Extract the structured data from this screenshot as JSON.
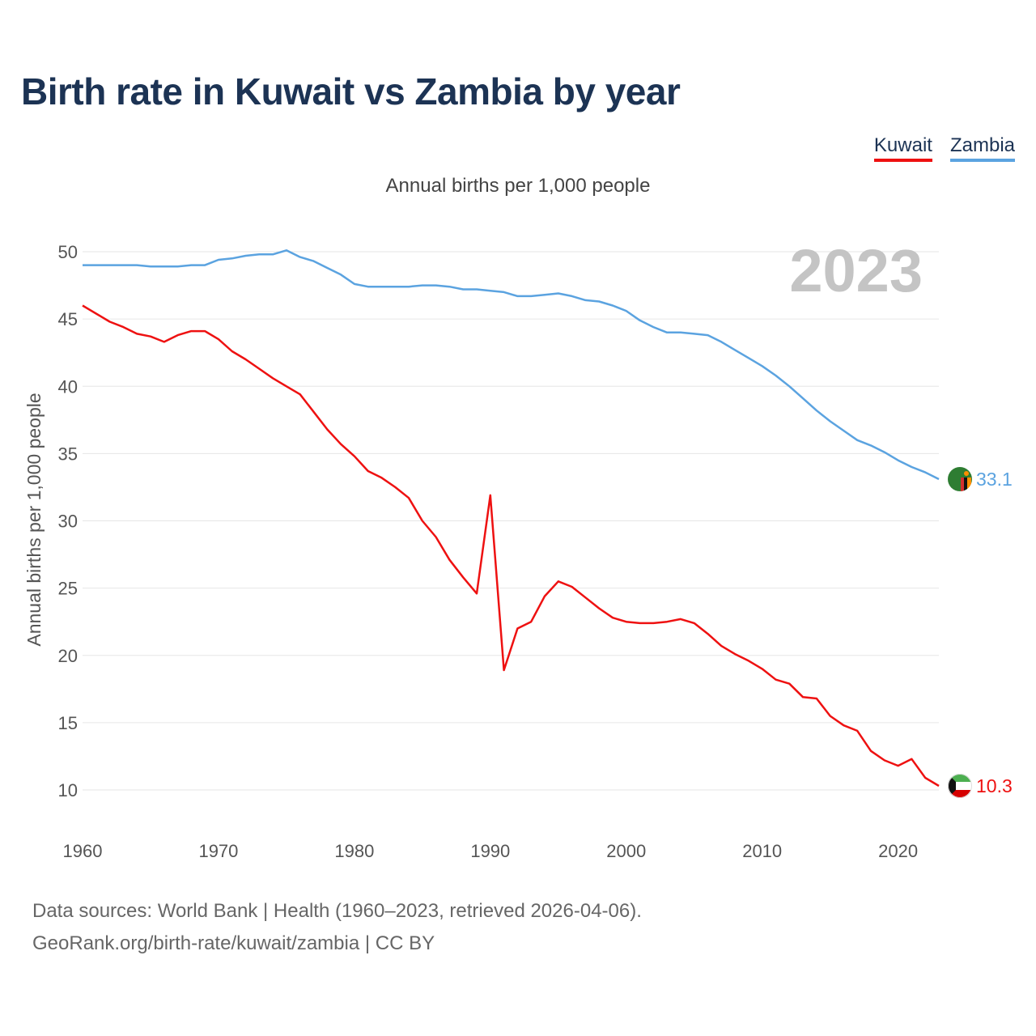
{
  "title": "Birth rate in Kuwait vs Zambia by year",
  "legend": [
    {
      "name": "Kuwait",
      "color": "#ee1111"
    },
    {
      "name": "Zambia",
      "color": "#5ba3e0"
    }
  ],
  "subtitle": "Annual births per 1,000 people",
  "footer": {
    "line1": "Data sources: World Bank | Health (1960–2023, retrieved 2026-04-06).",
    "line2": "GeoRank.org/birth-rate/kuwait/zambia | CC BY"
  },
  "chart_data": {
    "type": "line",
    "title": "Birth rate in Kuwait vs Zambia by year",
    "xlabel": "",
    "ylabel": "Annual births per 1,000 people",
    "xlim": [
      1960,
      2023
    ],
    "ylim": [
      10,
      50
    ],
    "yticks": [
      10,
      15,
      20,
      25,
      30,
      35,
      40,
      45,
      50
    ],
    "xticks": [
      1960,
      1970,
      1980,
      1990,
      2000,
      2010,
      2020
    ],
    "grid": true,
    "legend_position": "top-right",
    "year_label": "2023",
    "x": [
      1960,
      1961,
      1962,
      1963,
      1964,
      1965,
      1966,
      1967,
      1968,
      1969,
      1970,
      1971,
      1972,
      1973,
      1974,
      1975,
      1976,
      1977,
      1978,
      1979,
      1980,
      1981,
      1982,
      1983,
      1984,
      1985,
      1986,
      1987,
      1988,
      1989,
      1990,
      1991,
      1992,
      1993,
      1994,
      1995,
      1996,
      1997,
      1998,
      1999,
      2000,
      2001,
      2002,
      2003,
      2004,
      2005,
      2006,
      2007,
      2008,
      2009,
      2010,
      2011,
      2012,
      2013,
      2014,
      2015,
      2016,
      2017,
      2018,
      2019,
      2020,
      2021,
      2022,
      2023
    ],
    "series": [
      {
        "name": "Kuwait",
        "color": "#ee1111",
        "end_label": "10.3",
        "values": [
          46.0,
          45.4,
          44.8,
          44.4,
          43.9,
          43.7,
          43.3,
          43.8,
          44.1,
          44.1,
          43.5,
          42.6,
          42.0,
          41.3,
          40.6,
          40.0,
          39.4,
          38.1,
          36.8,
          35.7,
          34.8,
          33.7,
          33.2,
          32.5,
          31.7,
          30.0,
          28.8,
          27.1,
          25.8,
          24.6,
          31.9,
          18.9,
          22.0,
          22.5,
          24.4,
          25.5,
          25.1,
          24.3,
          23.5,
          22.8,
          22.5,
          22.4,
          22.4,
          22.5,
          22.7,
          22.4,
          21.6,
          20.7,
          20.1,
          19.6,
          19.0,
          18.2,
          17.9,
          16.9,
          16.8,
          15.5,
          14.8,
          14.4,
          12.9,
          12.2,
          11.8,
          12.3,
          10.9,
          10.3
        ]
      },
      {
        "name": "Zambia",
        "color": "#5ba3e0",
        "end_label": "33.1",
        "values": [
          49.0,
          49.0,
          49.0,
          49.0,
          49.0,
          48.9,
          48.9,
          48.9,
          49.0,
          49.0,
          49.4,
          49.5,
          49.7,
          49.8,
          49.8,
          50.1,
          49.6,
          49.3,
          48.8,
          48.3,
          47.6,
          47.4,
          47.4,
          47.4,
          47.4,
          47.5,
          47.5,
          47.4,
          47.2,
          47.2,
          47.1,
          47.0,
          46.7,
          46.7,
          46.8,
          46.9,
          46.7,
          46.4,
          46.3,
          46.0,
          45.6,
          44.9,
          44.4,
          44.0,
          44.0,
          43.9,
          43.8,
          43.3,
          42.7,
          42.1,
          41.5,
          40.8,
          40.0,
          39.1,
          38.2,
          37.4,
          36.7,
          36.0,
          35.6,
          35.1,
          34.5,
          34.0,
          33.6,
          33.1
        ]
      }
    ]
  }
}
